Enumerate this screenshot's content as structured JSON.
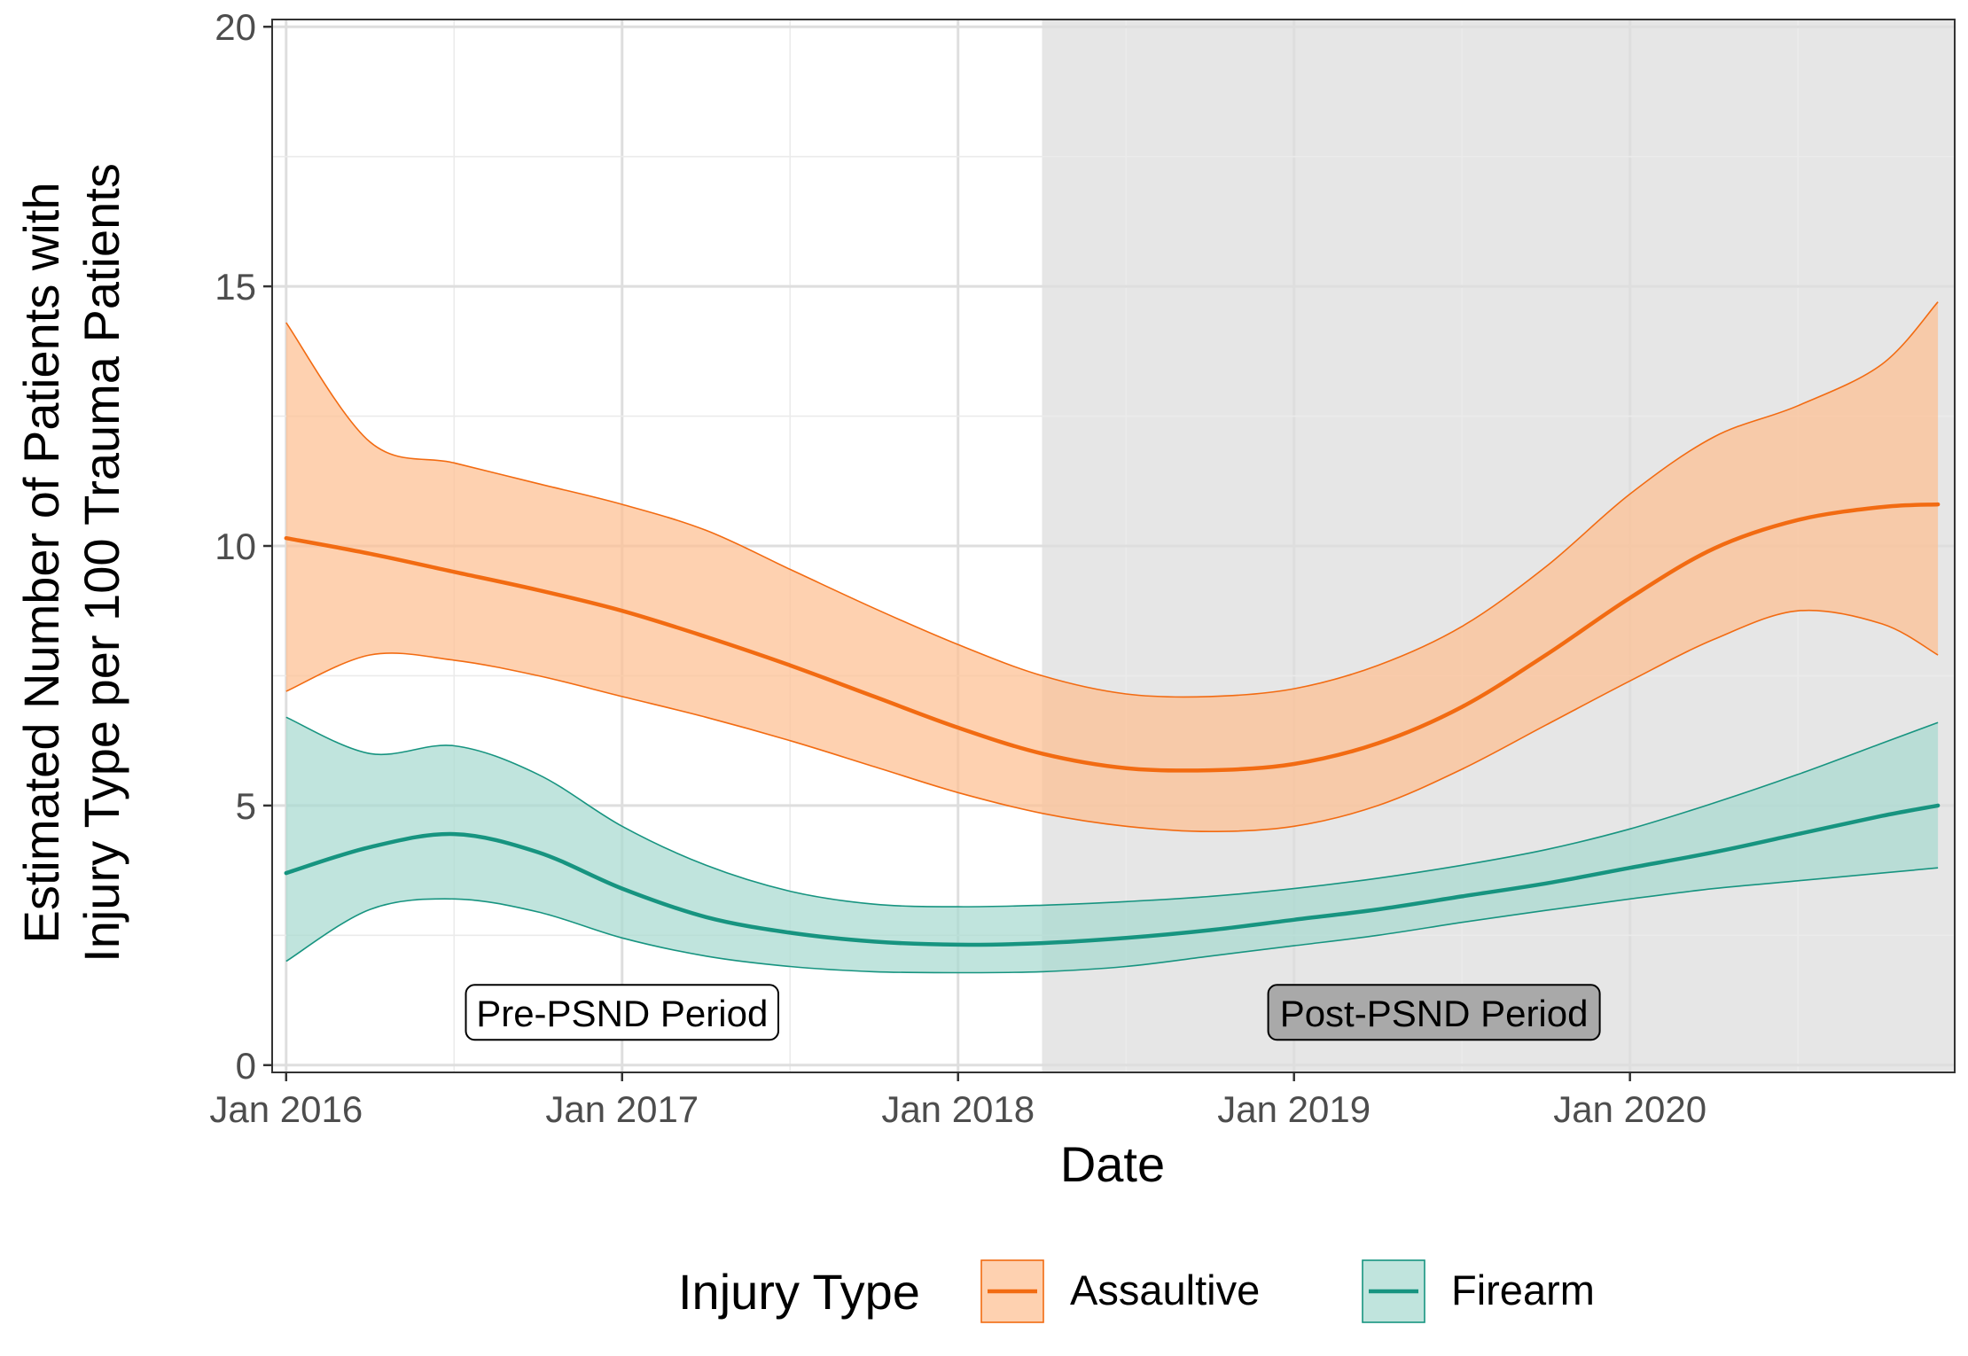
{
  "chart_data": {
    "type": "line",
    "xlabel": "Date",
    "ylabel_line1": "Estimated Number of Patients with",
    "ylabel_line2": "Injury Type per 100 Trauma Patients",
    "xlim": [
      "2016-01-01",
      "2020-12-01"
    ],
    "ylim": [
      0,
      20
    ],
    "x_ticks": [
      {
        "date": "2016-01-01",
        "label": "Jan 2016"
      },
      {
        "date": "2017-01-01",
        "label": "Jan 2017"
      },
      {
        "date": "2018-01-01",
        "label": "Jan 2018"
      },
      {
        "date": "2019-01-01",
        "label": "Jan 2019"
      },
      {
        "date": "2020-01-01",
        "label": "Jan 2020"
      }
    ],
    "x_minor_ticks": [
      "2016-07-01",
      "2017-07-01",
      "2018-07-01",
      "2019-07-01",
      "2020-07-01"
    ],
    "y_ticks": [
      0,
      5,
      10,
      15,
      20
    ],
    "grid": true,
    "shaded_period": {
      "start": "2018-04-01",
      "end": "2020-12-01",
      "color": "#e6e6e6"
    },
    "annotations": [
      {
        "text": "Pre-PSND Period",
        "date": "2017-01-01",
        "y": 1,
        "style": "light"
      },
      {
        "text": "Post-PSND Period",
        "date": "2019-06-01",
        "y": 1,
        "style": "dark"
      }
    ],
    "legend": {
      "title": "Injury Type",
      "position": "bottom"
    },
    "series": [
      {
        "name": "Assaultive",
        "color": "#f26b12",
        "fill": "#fdbf92",
        "x": [
          "2016-01-01",
          "2016-04-01",
          "2016-07-01",
          "2016-10-01",
          "2017-01-01",
          "2017-04-01",
          "2017-07-01",
          "2017-10-01",
          "2018-01-01",
          "2018-04-01",
          "2018-07-01",
          "2018-10-01",
          "2019-01-01",
          "2019-04-01",
          "2019-07-01",
          "2019-10-01",
          "2020-01-01",
          "2020-04-01",
          "2020-07-01",
          "2020-10-01",
          "2020-12-01"
        ],
        "values": [
          10.15,
          9.85,
          9.5,
          9.15,
          8.75,
          8.25,
          7.7,
          7.1,
          6.5,
          6.0,
          5.72,
          5.68,
          5.8,
          6.2,
          6.9,
          7.9,
          9.0,
          9.95,
          10.5,
          10.75,
          10.8
        ],
        "lower": [
          7.2,
          7.9,
          7.8,
          7.5,
          7.1,
          6.7,
          6.25,
          5.75,
          5.25,
          4.85,
          4.6,
          4.5,
          4.6,
          5.0,
          5.7,
          6.55,
          7.4,
          8.2,
          8.75,
          8.5,
          7.9
        ],
        "upper": [
          14.3,
          12.0,
          11.6,
          11.2,
          10.8,
          10.3,
          9.55,
          8.8,
          8.1,
          7.5,
          7.15,
          7.1,
          7.25,
          7.7,
          8.45,
          9.6,
          11.0,
          12.1,
          12.7,
          13.5,
          14.7
        ]
      },
      {
        "name": "Firearm",
        "color": "#179480",
        "fill": "#a8d9d0",
        "x": [
          "2016-01-01",
          "2016-04-01",
          "2016-07-01",
          "2016-10-01",
          "2017-01-01",
          "2017-04-01",
          "2017-07-01",
          "2017-10-01",
          "2018-01-01",
          "2018-04-01",
          "2018-07-01",
          "2018-10-01",
          "2019-01-01",
          "2019-04-01",
          "2019-07-01",
          "2019-10-01",
          "2020-01-01",
          "2020-04-01",
          "2020-07-01",
          "2020-10-01",
          "2020-12-01"
        ],
        "values": [
          3.7,
          4.2,
          4.45,
          4.1,
          3.4,
          2.85,
          2.55,
          2.38,
          2.32,
          2.35,
          2.45,
          2.6,
          2.8,
          3.0,
          3.25,
          3.5,
          3.8,
          4.1,
          4.45,
          4.8,
          5.0
        ],
        "lower": [
          2.0,
          3.0,
          3.2,
          2.95,
          2.45,
          2.1,
          1.9,
          1.8,
          1.78,
          1.8,
          1.9,
          2.1,
          2.3,
          2.5,
          2.75,
          2.98,
          3.2,
          3.4,
          3.55,
          3.7,
          3.8
        ],
        "upper": [
          6.7,
          6.0,
          6.15,
          5.6,
          4.6,
          3.85,
          3.35,
          3.1,
          3.05,
          3.08,
          3.15,
          3.25,
          3.4,
          3.6,
          3.85,
          4.15,
          4.55,
          5.05,
          5.6,
          6.2,
          6.6
        ]
      }
    ]
  }
}
